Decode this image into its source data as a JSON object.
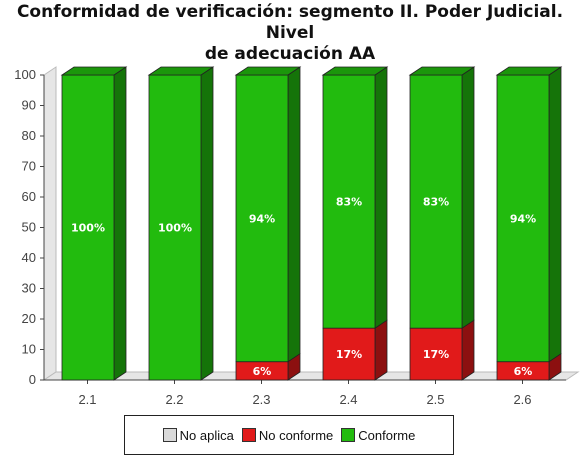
{
  "chart_data": {
    "type": "bar",
    "stacked": true,
    "title": "Conformidad de verificación: segmento II. Poder Judicial. Nivel de adecuación AA",
    "title_lines": [
      "Conformidad de verificación: segmento II. Poder Judicial. Nivel",
      "de adecuación AA"
    ],
    "categories": [
      "2.1",
      "2.2",
      "2.3",
      "2.4",
      "2.5",
      "2.6"
    ],
    "series": [
      {
        "name": "No aplica",
        "color": "#d9d9d9",
        "values": [
          0,
          0,
          0,
          0,
          0,
          0
        ],
        "labels": [
          "",
          "",
          "",
          "",
          "",
          ""
        ]
      },
      {
        "name": "No conforme",
        "color": "#e11a1a",
        "values": [
          0,
          0,
          6,
          17,
          17,
          6
        ],
        "labels": [
          "",
          "",
          "6%",
          "17%",
          "17%",
          "6%"
        ]
      },
      {
        "name": "Conforme",
        "color": "#22bb0e",
        "values": [
          100,
          100,
          94,
          83,
          83,
          94
        ],
        "labels": [
          "100%",
          "100%",
          "94%",
          "83%",
          "83%",
          "94%"
        ]
      }
    ],
    "ylim": [
      0,
      100
    ],
    "yticks": [
      0,
      10,
      20,
      30,
      40,
      50,
      60,
      70,
      80,
      90,
      100
    ],
    "xlabel": "",
    "ylabel": "",
    "grid": false,
    "legend_position": "bottom"
  }
}
